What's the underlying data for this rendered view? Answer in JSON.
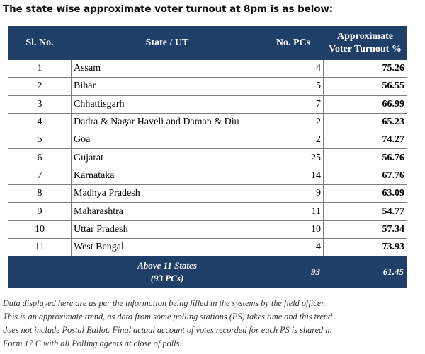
{
  "heading": "The state wise approximate voter turnout at 8pm is as below:",
  "table": {
    "columns": [
      "Sl. No.",
      "State / UT",
      "No. PCs",
      "Approximate",
      "Voter Turnout %"
    ],
    "rows": [
      {
        "sl": "1",
        "state": "Assam",
        "pcs": "4",
        "turnout": "75.26"
      },
      {
        "sl": "2",
        "state": "Bihar",
        "pcs": "5",
        "turnout": "56.55"
      },
      {
        "sl": "3",
        "state": "Chhattisgarh",
        "pcs": "7",
        "turnout": "66.99"
      },
      {
        "sl": "4",
        "state": "Dadra & Nagar Haveli and Daman & Diu",
        "pcs": "2",
        "turnout": "65.23"
      },
      {
        "sl": "5",
        "state": "Goa",
        "pcs": "2",
        "turnout": "74.27"
      },
      {
        "sl": "6",
        "state": "Gujarat",
        "pcs": "25",
        "turnout": "56.76"
      },
      {
        "sl": "7",
        "state": "Karnataka",
        "pcs": "14",
        "turnout": "67.76"
      },
      {
        "sl": "8",
        "state": "Madhya Pradesh",
        "pcs": "9",
        "turnout": "63.09"
      },
      {
        "sl": "9",
        "state": "Maharashtra",
        "pcs": "11",
        "turnout": "54.77"
      },
      {
        "sl": "10",
        "state": "Uttar Pradesh",
        "pcs": "10",
        "turnout": "57.34"
      },
      {
        "sl": "11",
        "state": "West Bengal",
        "pcs": "4",
        "turnout": "73.93"
      }
    ],
    "total": {
      "label_line1": "Above 11 States",
      "label_line2": "(93 PCs)",
      "pcs": "93",
      "turnout": "61.45"
    }
  },
  "note_lines": [
    "Data displayed here are as per the information being filled in the systems by the field officer.",
    "This is an approximate trend, as data from some polling stations (PS) takes time and this trend",
    "does not include Postal Ballot. Final actual account of votes recorded for each PS is shared in",
    "Form 17 C with all Polling agents at close of polls."
  ],
  "colors": {
    "header_bg": "#1f3e68",
    "header_text": "#ffffff",
    "grid": "#7d7d7d"
  }
}
